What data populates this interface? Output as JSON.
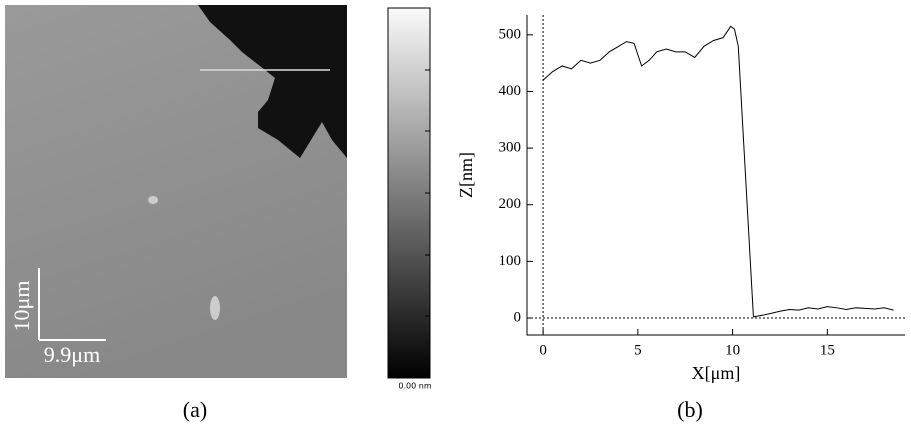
{
  "image_panel": {
    "scale_bar_vertical": "10μm",
    "scale_bar_horizontal": "9.9μm",
    "colorbar_label": "0.00 nm",
    "panel_label": "(a)"
  },
  "chart_data": {
    "type": "line",
    "panel_label": "(b)",
    "x_label": "X[μm]",
    "y_label": "Z[nm]",
    "x": [
      0,
      0.5,
      1,
      1.5,
      2,
      2.5,
      3,
      3.5,
      4,
      4.4,
      4.8,
      5.2,
      5.6,
      6,
      6.5,
      7,
      7.5,
      8,
      8.5,
      9,
      9.5,
      9.9,
      10.1,
      10.3,
      11.1,
      11.6,
      12,
      12.5,
      13,
      13.5,
      14,
      14.5,
      15,
      15.5,
      16,
      16.5,
      17,
      17.5,
      18,
      18.5
    ],
    "values": [
      420,
      435,
      445,
      440,
      455,
      450,
      455,
      470,
      480,
      488,
      485,
      445,
      455,
      470,
      475,
      470,
      470,
      460,
      480,
      490,
      495,
      515,
      510,
      480,
      2,
      5,
      8,
      12,
      15,
      14,
      18,
      16,
      20,
      18,
      15,
      18,
      17,
      16,
      18,
      14
    ],
    "color": "#000000",
    "xlim": [
      -0.85,
      19.1
    ],
    "ylim": [
      -30,
      535
    ],
    "xticks": [
      0,
      5,
      10,
      15
    ],
    "yticks": [
      0,
      100,
      200,
      300,
      400,
      500
    ]
  }
}
